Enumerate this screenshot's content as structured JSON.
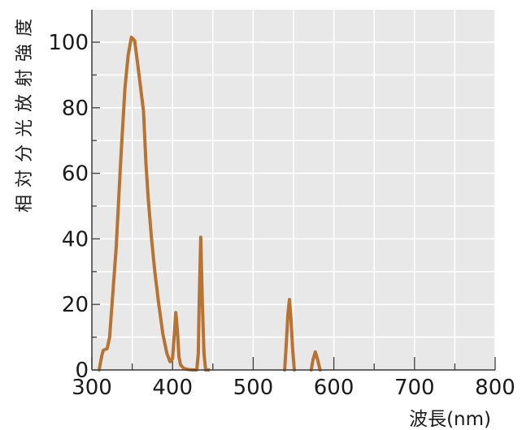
{
  "chart_data": {
    "type": "line",
    "title": "",
    "xlabel": "波長(nm)",
    "ylabel": "相対分光放射強度",
    "xlim": [
      300,
      800
    ],
    "ylim": [
      0,
      110
    ],
    "x_ticks": [
      300,
      400,
      500,
      600,
      700,
      800
    ],
    "x_tick_labels": [
      "300",
      "400",
      "500",
      "600",
      "700",
      "800"
    ],
    "y_ticks": [
      0,
      20,
      40,
      60,
      80,
      100
    ],
    "y_tick_labels": [
      "0",
      "20",
      "40",
      "60",
      "80",
      "100"
    ],
    "grid": true,
    "legend": "none",
    "series": [
      {
        "color": "#b87333",
        "points": [
          [
            309,
            0
          ],
          [
            312,
            4
          ],
          [
            314,
            6
          ],
          [
            319,
            6.5
          ],
          [
            322,
            10
          ],
          [
            330,
            37
          ],
          [
            336,
            65
          ],
          [
            341,
            86
          ],
          [
            345,
            96
          ],
          [
            349,
            101.5
          ],
          [
            353,
            100.5
          ],
          [
            357,
            93
          ],
          [
            360,
            87
          ],
          [
            364,
            79
          ],
          [
            367,
            63
          ],
          [
            370,
            52
          ],
          [
            374,
            40
          ],
          [
            378,
            30
          ],
          [
            383,
            20
          ],
          [
            388,
            11
          ],
          [
            393,
            5
          ],
          [
            397,
            2.5
          ],
          [
            400,
            3.5
          ],
          [
            402,
            10
          ],
          [
            404,
            17.5
          ],
          [
            406,
            12
          ],
          [
            408,
            4
          ],
          [
            410,
            1.5
          ],
          [
            414,
            0.5
          ],
          [
            420,
            0.1
          ],
          [
            426,
            0
          ],
          [
            430,
            0
          ],
          [
            432,
            5
          ],
          [
            433,
            20
          ],
          [
            435,
            40.5
          ],
          [
            437,
            20
          ],
          [
            439,
            5
          ],
          [
            441,
            0
          ],
          [
            445,
            0
          ]
        ]
      },
      {
        "color": "#b87333",
        "points": [
          [
            539,
            0
          ],
          [
            541,
            8
          ],
          [
            543,
            17
          ],
          [
            545,
            21.5
          ],
          [
            547,
            15
          ],
          [
            549,
            6
          ],
          [
            551,
            0
          ]
        ]
      },
      {
        "color": "#b87333",
        "points": [
          [
            572,
            0
          ],
          [
            574,
            3
          ],
          [
            577,
            5.5
          ],
          [
            580,
            3
          ],
          [
            583,
            0
          ]
        ]
      }
    ]
  }
}
